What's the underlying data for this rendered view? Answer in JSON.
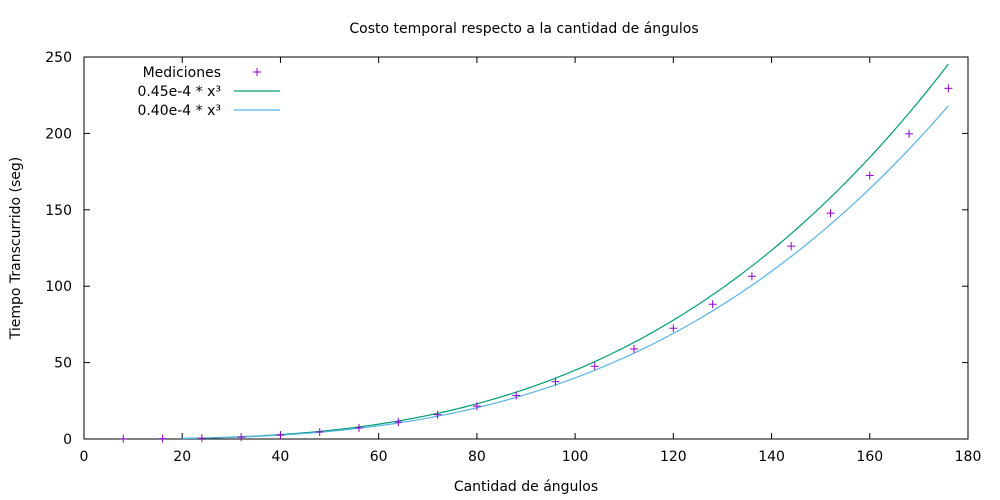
{
  "chart_data": {
    "type": "scatter",
    "title": "Costo temporal respecto a la cantidad de ángulos",
    "xlabel": "Cantidad de ángulos",
    "ylabel": "Tiempo Transcurrido (seg)",
    "xlim": [
      0,
      180
    ],
    "ylim": [
      0,
      250
    ],
    "xticks": [
      0,
      20,
      40,
      60,
      80,
      100,
      120,
      140,
      160,
      180
    ],
    "yticks": [
      0,
      50,
      100,
      150,
      200,
      250
    ],
    "grid": false,
    "legend_position": "top-left",
    "series": [
      {
        "name": "Mediciones",
        "kind": "points",
        "color": "#9400d3",
        "x": [
          8,
          16,
          24,
          32,
          40,
          48,
          56,
          64,
          72,
          80,
          88,
          96,
          104,
          112,
          120,
          128,
          136,
          144,
          152,
          160,
          168,
          176
        ],
        "y": [
          0.1,
          0.2,
          0.5,
          1.2,
          2.6,
          4.6,
          7.3,
          11.1,
          15.9,
          21.5,
          28.5,
          37.5,
          47.6,
          58.9,
          72.5,
          88.2,
          106.5,
          126.2,
          147.8,
          172.5,
          199.7,
          229.5
        ]
      },
      {
        "name": "0.45e-4 * x³",
        "kind": "line",
        "color": "#009e73",
        "coefficient": 4.5e-05,
        "exponent": 3,
        "x_range": [
          20,
          176
        ]
      },
      {
        "name": "0.40e-4 * x³",
        "kind": "line",
        "color": "#56b4e9",
        "coefficient": 4e-05,
        "exponent": 3,
        "x_range": [
          20,
          176
        ]
      }
    ]
  }
}
